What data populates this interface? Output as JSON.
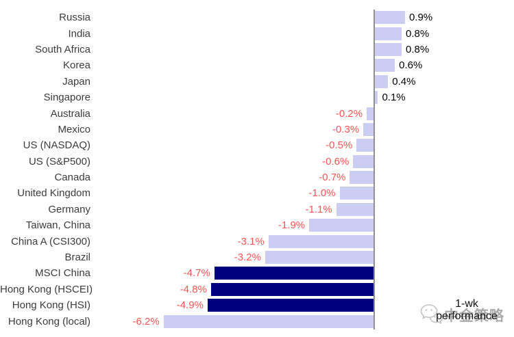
{
  "chart_data": {
    "type": "bar",
    "orientation": "horizontal",
    "title": "1-wk performance",
    "categories": [
      "Russia",
      "India",
      "South Africa",
      "Korea",
      "Japan",
      "Singapore",
      "Australia",
      "Mexico",
      "US (NASDAQ)",
      "US (S&P500)",
      "Canada",
      "United Kingdom",
      "Germany",
      "Taiwan, China",
      "China A (CSI300)",
      "Brazil",
      "MSCI China",
      "Hong Kong (HSCEI)",
      "Hong Kong (HSI)",
      "Hong Kong (local)"
    ],
    "values": [
      0.9,
      0.8,
      0.8,
      0.6,
      0.4,
      0.1,
      -0.2,
      -0.3,
      -0.5,
      -0.6,
      -0.7,
      -1.0,
      -1.1,
      -1.9,
      -3.1,
      -3.2,
      -4.7,
      -4.8,
      -4.9,
      -6.2
    ],
    "value_labels": [
      "0.9%",
      "0.8%",
      "0.8%",
      "0.6%",
      "0.4%",
      "0.1%",
      "-0.2%",
      "-0.3%",
      "-0.5%",
      "-0.6%",
      "-0.7%",
      "-1.0%",
      "-1.1%",
      "-1.9%",
      "-3.1%",
      "-3.2%",
      "-4.7%",
      "-4.8%",
      "-4.9%",
      "-6.2%"
    ],
    "emphasized": [
      "MSCI China",
      "Hong Kong (HSCEI)",
      "Hong Kong (HSI)"
    ],
    "xlim": [
      -6.5,
      1.0
    ],
    "grid": false,
    "legend": "none",
    "colors": {
      "bar_default": "#cccdf3",
      "bar_emphasis": "#00007e",
      "positive_label": "#000000",
      "negative_label": "#ff5252",
      "category_label": "#3b3b3b",
      "axis_line": "#8f8f8f"
    }
  },
  "annotation": {
    "line1": "1-wk",
    "line2": "performance"
  },
  "watermark": {
    "text": "中金策略",
    "icon": "wechat-icon",
    "color": "#ababab"
  }
}
